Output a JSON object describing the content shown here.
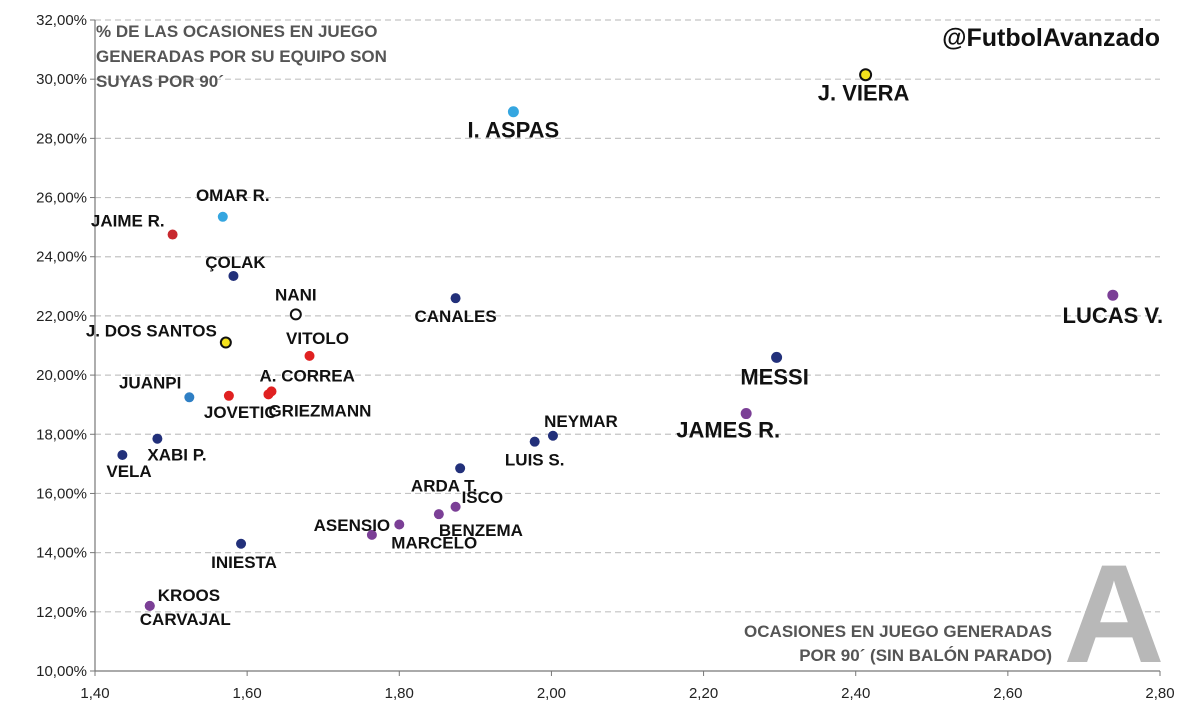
{
  "handle": "@FutbolAvanzado",
  "chart_data": {
    "type": "scatter",
    "title": "",
    "ylabel_lines": [
      "% DE LAS OCASIONES EN JUEGO",
      "GENERADAS POR SU EQUIPO SON",
      "SUYAS POR 90´"
    ],
    "xlabel_lines": [
      "OCASIONES EN JUEGO GENERADAS",
      "POR 90´ (SIN BALÓN PARADO)"
    ],
    "xlim": [
      1.4,
      2.8
    ],
    "ylim": [
      10,
      32
    ],
    "x_ticks": [
      1.4,
      1.6,
      1.8,
      2.0,
      2.2,
      2.4,
      2.6,
      2.8
    ],
    "x_tick_labels": [
      "1,40",
      "1,60",
      "1,80",
      "2,00",
      "2,20",
      "2,40",
      "2,60",
      "2,80"
    ],
    "y_ticks": [
      10,
      12,
      14,
      16,
      18,
      20,
      22,
      24,
      26,
      28,
      30,
      32
    ],
    "y_tick_labels": [
      "10,00%",
      "12,00%",
      "14,00%",
      "16,00%",
      "18,00%",
      "20,00%",
      "22,00%",
      "24,00%",
      "26,00%",
      "28,00%",
      "30,00%",
      "32,00%"
    ],
    "grid": "horizontal dashed",
    "points": [
      {
        "label": "J. VIERA",
        "x": 2.413,
        "y": 30.15,
        "color": "#f4e21d",
        "outline": "#111111",
        "size": "large"
      },
      {
        "label": "I. ASPAS",
        "x": 1.95,
        "y": 28.9,
        "color": "#35a6e0",
        "size": "large"
      },
      {
        "label": "OMAR R.",
        "x": 1.568,
        "y": 25.35,
        "color": "#35a6e0",
        "size": "small"
      },
      {
        "label": "JAIME R.",
        "x": 1.502,
        "y": 24.75,
        "color": "#c8282e",
        "size": "small"
      },
      {
        "label": "ÇOLAK",
        "x": 1.582,
        "y": 23.35,
        "color": "#22307a",
        "size": "small"
      },
      {
        "label": "NANI",
        "x": 1.664,
        "y": 22.05,
        "color": "#ffffff",
        "outline": "#111111",
        "size": "small"
      },
      {
        "label": "CANALES",
        "x": 1.874,
        "y": 22.6,
        "color": "#22307a",
        "size": "small"
      },
      {
        "label": "LUCAS V.",
        "x": 2.738,
        "y": 22.7,
        "color": "#7b3f96",
        "size": "large"
      },
      {
        "label": "J. DOS SANTOS",
        "x": 1.572,
        "y": 21.1,
        "color": "#f4e21d",
        "outline": "#111111",
        "size": "small"
      },
      {
        "label": "VITOLO",
        "x": 1.682,
        "y": 20.65,
        "color": "#e02121",
        "size": "small"
      },
      {
        "label": "MESSI",
        "x": 2.296,
        "y": 20.6,
        "color": "#22307a",
        "size": "large"
      },
      {
        "label": "A. CORREA",
        "x": 1.632,
        "y": 19.45,
        "color": "#e02121",
        "size": "small"
      },
      {
        "label": "GRIEZMANN",
        "x": 1.628,
        "y": 19.35,
        "color": "#e02121",
        "size": "small"
      },
      {
        "label": "JOVETIC",
        "x": 1.576,
        "y": 19.3,
        "color": "#e02121",
        "size": "small"
      },
      {
        "label": "JUANPI",
        "x": 1.524,
        "y": 19.25,
        "color": "#2f7fc4",
        "size": "small"
      },
      {
        "label": "JAMES R.",
        "x": 2.256,
        "y": 18.7,
        "color": "#7b3f96",
        "size": "large"
      },
      {
        "label": "NEYMAR",
        "x": 2.002,
        "y": 17.95,
        "color": "#22307a",
        "size": "small"
      },
      {
        "label": "LUIS S.",
        "x": 1.978,
        "y": 17.75,
        "color": "#22307a",
        "size": "small"
      },
      {
        "label": "XABI P.",
        "x": 1.482,
        "y": 17.85,
        "color": "#22307a",
        "size": "small"
      },
      {
        "label": "VELA",
        "x": 1.436,
        "y": 17.3,
        "color": "#22307a",
        "size": "small"
      },
      {
        "label": "ARDA T.",
        "x": 1.88,
        "y": 16.85,
        "color": "#22307a",
        "size": "small"
      },
      {
        "label": "ISCO",
        "x": 1.874,
        "y": 15.55,
        "color": "#7b3f96",
        "size": "small"
      },
      {
        "label": "BENZEMA",
        "x": 1.852,
        "y": 15.3,
        "color": "#7b3f96",
        "size": "small"
      },
      {
        "label": "MARCELO",
        "x": 1.8,
        "y": 14.95,
        "color": "#7b3f96",
        "size": "small"
      },
      {
        "label": "ASENSIO",
        "x": 1.764,
        "y": 14.6,
        "color": "#7b3f96",
        "size": "small"
      },
      {
        "label": "INIESTA",
        "x": 1.592,
        "y": 14.3,
        "color": "#22307a",
        "size": "small"
      },
      {
        "label": "KROOS",
        "x": 1.472,
        "y": 12.2,
        "color": "#7b3f96",
        "size": "small"
      },
      {
        "label": "CARVAJAL",
        "x": 1.472,
        "y": 12.2,
        "color": "#7b3f96",
        "size": "small"
      }
    ]
  }
}
